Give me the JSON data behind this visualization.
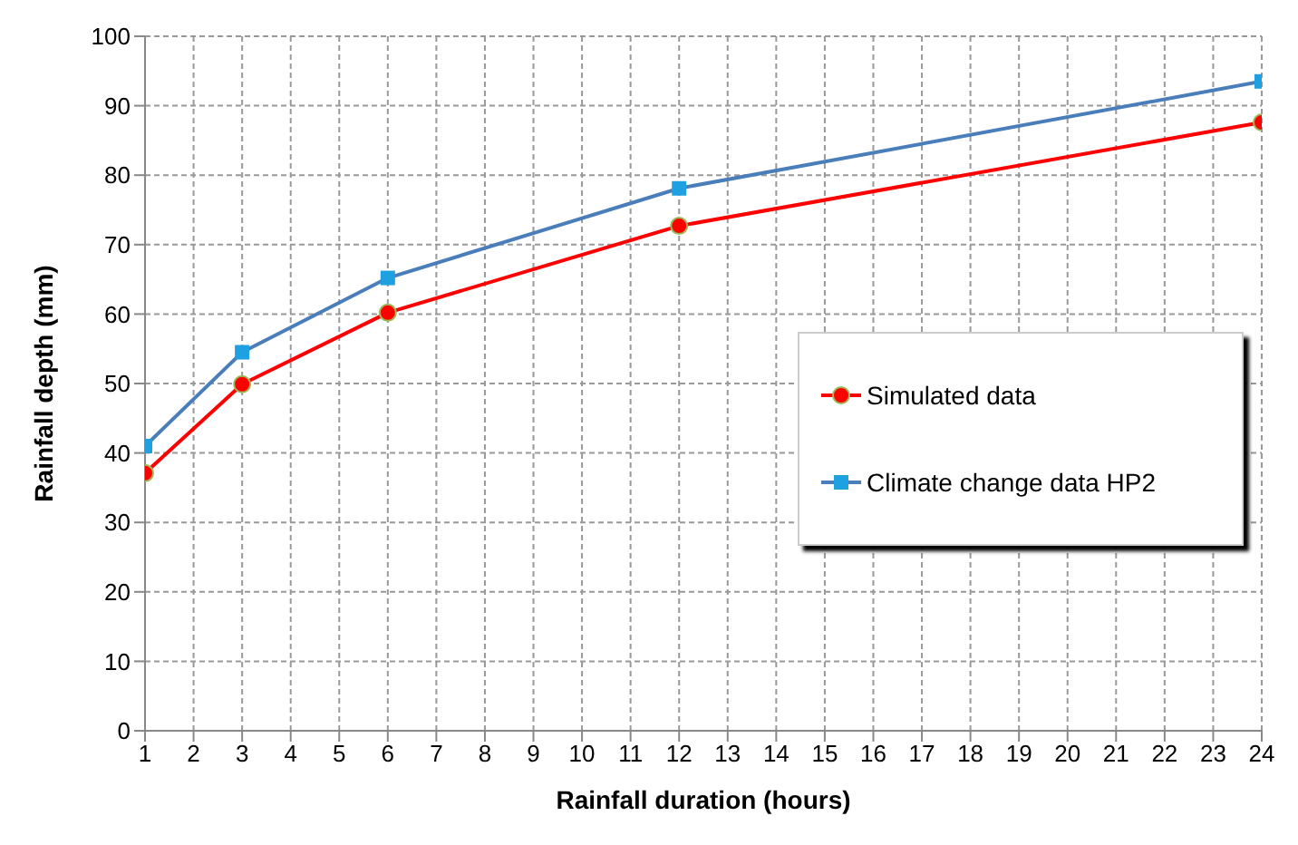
{
  "chart_data": {
    "type": "line",
    "xlabel": "Rainfall duration (hours)",
    "ylabel": "Rainfall depth (mm)",
    "x": [
      1,
      3,
      6,
      12,
      24
    ],
    "series": [
      {
        "name": "Simulated data",
        "color": "#ff0000",
        "values": [
          37.1,
          49.9,
          60.2,
          72.7,
          87.6
        ],
        "marker": "circle"
      },
      {
        "name": "Climate change data HP2",
        "color": "#4a7ebb",
        "values": [
          41.0,
          54.5,
          65.2,
          78.1,
          93.5
        ],
        "marker": "square"
      }
    ],
    "xlim": [
      1,
      24
    ],
    "xticks": [
      1,
      2,
      3,
      4,
      5,
      6,
      7,
      8,
      9,
      10,
      11,
      12,
      13,
      14,
      15,
      16,
      17,
      18,
      19,
      20,
      21,
      22,
      23,
      24
    ],
    "ylim": [
      0,
      100
    ],
    "yticks": [
      0,
      10,
      20,
      30,
      40,
      50,
      60,
      70,
      80,
      90,
      100
    ],
    "grid": true,
    "legend": "right",
    "line_style": "solid"
  }
}
